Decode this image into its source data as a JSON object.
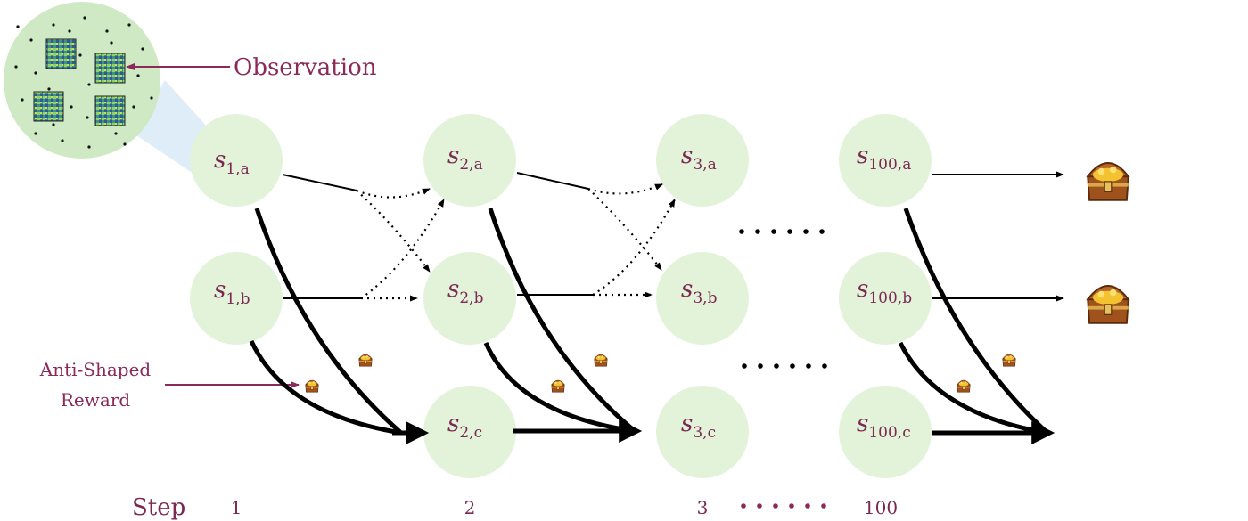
{
  "colors": {
    "node_fill": "#e3f3da",
    "label": "#7a2a52",
    "arrow": "#000000",
    "callout": "#8b2a5a",
    "zoom_fill": "#cfe9c4",
    "cone": "#dcebf7"
  },
  "callouts": {
    "observation": "Observation",
    "anti_shaped_line1": "Anti-Shaped",
    "anti_shaped_line2": "Reward"
  },
  "steps": {
    "label": "Step",
    "values": [
      "1",
      "2",
      "3",
      "100"
    ]
  },
  "nodes": {
    "s1a": {
      "sym": "s",
      "sub": "1,a"
    },
    "s1b": {
      "sym": "s",
      "sub": "1,b"
    },
    "s2a": {
      "sym": "s",
      "sub": "2,a"
    },
    "s2b": {
      "sym": "s",
      "sub": "2,b"
    },
    "s2c": {
      "sym": "s",
      "sub": "2,c"
    },
    "s3a": {
      "sym": "s",
      "sub": "3,a"
    },
    "s3b": {
      "sym": "s",
      "sub": "3,b"
    },
    "s3c": {
      "sym": "s",
      "sub": "3,c"
    },
    "s100a": {
      "sym": "s",
      "sub": "100,a"
    },
    "s100b": {
      "sym": "s",
      "sub": "100,b"
    },
    "s100c": {
      "sym": "s",
      "sub": "100,c"
    }
  },
  "icons": {
    "treasure": "treasure-chest-icon",
    "observation_patch": "observation-patch-icon"
  }
}
